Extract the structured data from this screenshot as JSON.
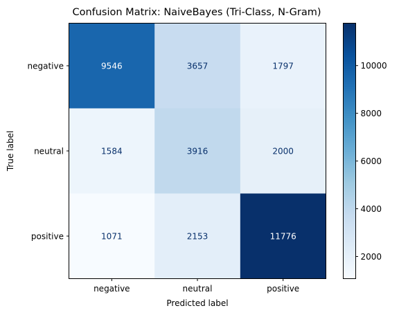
{
  "chart_data": {
    "type": "heatmap",
    "title": "Confusion Matrix: NaiveBayes (Tri-Class, N-Gram)",
    "xlabel": "Predicted label",
    "ylabel": "True label",
    "x_categories": [
      "negative",
      "neutral",
      "positive"
    ],
    "y_categories": [
      "negative",
      "neutral",
      "positive"
    ],
    "values": [
      [
        9546,
        3657,
        1797
      ],
      [
        1584,
        3916,
        2000
      ],
      [
        1071,
        2153,
        11776
      ]
    ],
    "colormap": "Blues",
    "color_range": [
      1071,
      11776
    ],
    "colorbar_ticks": [
      2000,
      4000,
      6000,
      8000,
      10000
    ],
    "cell_text_colors": {
      "light_cell": "#08306b",
      "dark_cell": "#ffffff"
    }
  }
}
